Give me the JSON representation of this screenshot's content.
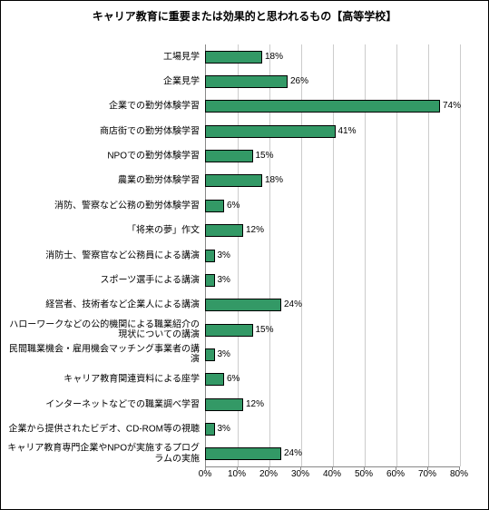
{
  "chart": {
    "type": "bar-horizontal",
    "title": "キャリア教育に重要または効果的と思われるもの【高等学校】",
    "title_fontsize": 12,
    "label_fontsize": 10,
    "value_label_fontsize": 10,
    "tick_fontsize": 10,
    "background_color": "#ffffff",
    "bar_color": "#339966",
    "bar_border_color": "#000000",
    "grid_color": "#cccccc",
    "axis_color": "#888888",
    "x_min": 0,
    "x_max": 80,
    "x_tick_step": 10,
    "x_ticks": [
      "0%",
      "10%",
      "20%",
      "30%",
      "40%",
      "50%",
      "60%",
      "70%",
      "80%"
    ],
    "categories": [
      "工場見学",
      "企業見学",
      "企業での勤労体験学習",
      "商店街での勤労体験学習",
      "NPOでの勤労体験学習",
      "農業の勤労体験学習",
      "消防、警察など公務の勤労体験学習",
      "「将来の夢」作文",
      "消防士、警察官など公務員による講演",
      "スポーツ選手による講演",
      "経営者、技術者など企業人による講演",
      "ハローワークなどの公的機関による職業紹介の現状についての講演",
      "民間職業機会・雇用機会マッチング事業者の講演",
      "キャリア教育関連資料による座学",
      "インターネットなどでの職業調べ学習",
      "企業から提供されたビデオ、CD-ROM等の視聴",
      "キャリア教育専門企業やNPOが実施するプログラムの実施"
    ],
    "values": [
      18,
      26,
      74,
      41,
      15,
      18,
      6,
      12,
      3,
      3,
      24,
      15,
      3,
      6,
      12,
      3,
      24
    ],
    "value_labels": [
      "18%",
      "26%",
      "74%",
      "41%",
      "15%",
      "18%",
      "6%",
      "12%",
      "3%",
      "3%",
      "24%",
      "15%",
      "3%",
      "6%",
      "12%",
      "3%",
      "24%"
    ]
  }
}
